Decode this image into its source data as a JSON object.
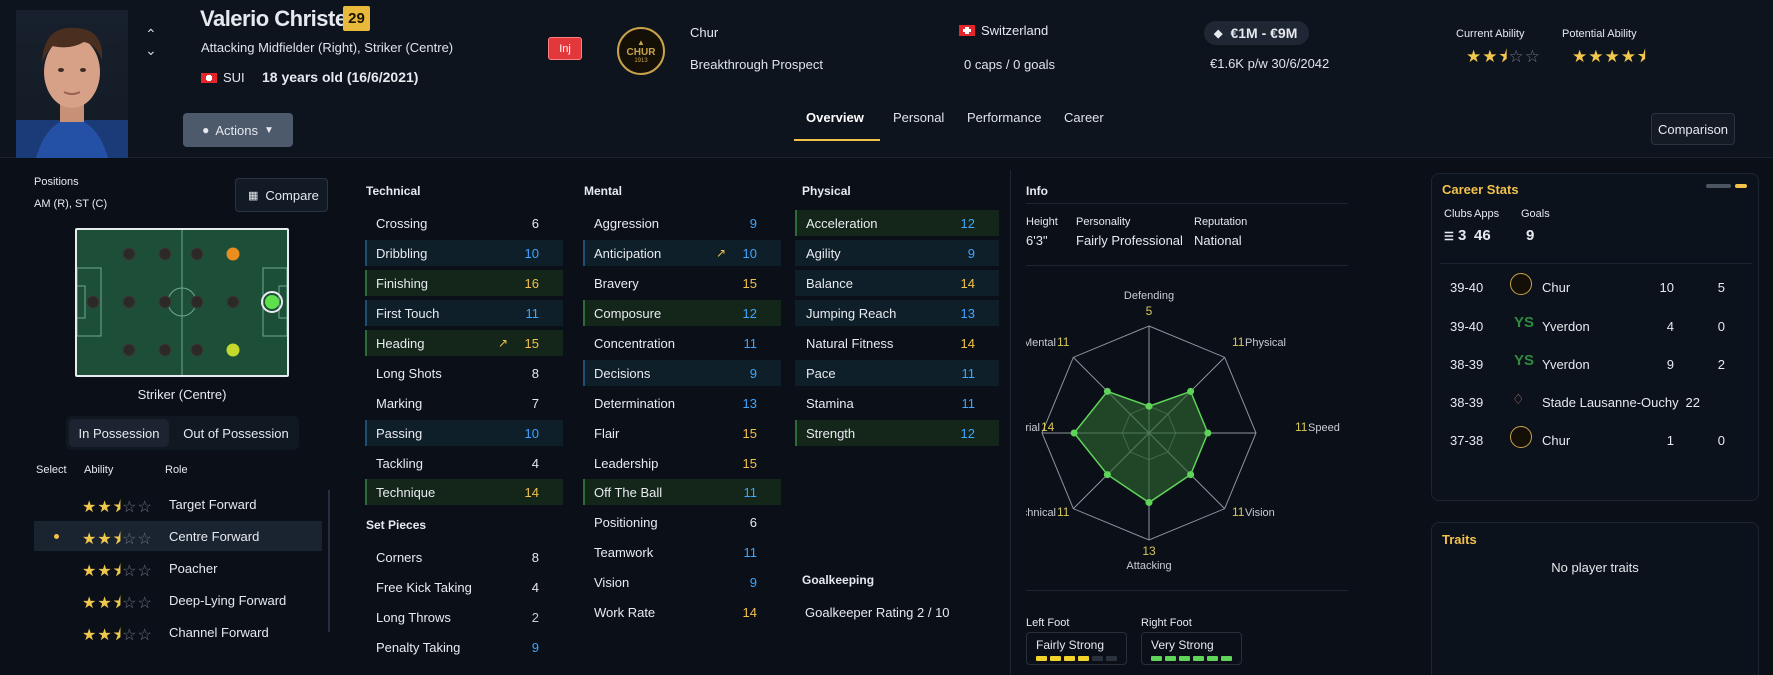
{
  "player": {
    "name": "Valerio Christen",
    "number": "29",
    "positions_text": "Attacking Midfielder (Right), Striker (Centre)",
    "nation_code": "SUI",
    "age_text": "18 years old (16/6/2021)",
    "inj_badge": "Inj",
    "club": "Chur",
    "status": "Breakthrough Prospect",
    "club_badge_text": "CHUR",
    "club_badge_year": "1913",
    "nationality": "Switzerland",
    "caps": "0 caps / 0 goals",
    "value": "€1M - €9M",
    "contract": "€1.6K p/w 30/6/2042",
    "current_ability_label": "Current Ability",
    "potential_ability_label": "Potential Ability",
    "current_ability_stars": 2.5,
    "potential_ability_stars": 4.5
  },
  "actions_label": "Actions",
  "comparison_label": "Comparison",
  "tabs": [
    {
      "label": "Overview",
      "active": true
    },
    {
      "label": "Personal"
    },
    {
      "label": "Performance"
    },
    {
      "label": "Career"
    }
  ],
  "positions_panel": {
    "label": "Positions",
    "value": "AM (R), ST (C)",
    "compare_label": "Compare",
    "pitch_caption": "Striker (Centre)",
    "toggle": [
      "In Possession",
      "Out of Possession"
    ],
    "columns": [
      "Select",
      "Ability",
      "Role"
    ],
    "roles": [
      {
        "name": "Target Forward",
        "stars": 2.5,
        "selected": false
      },
      {
        "name": "Centre Forward",
        "stars": 2.5,
        "selected": true
      },
      {
        "name": "Poacher",
        "stars": 2.5,
        "selected": false
      },
      {
        "name": "Deep-Lying Forward",
        "stars": 2.5,
        "selected": false
      },
      {
        "name": "Channel Forward",
        "stars": 2.5,
        "selected": false
      }
    ]
  },
  "technical": {
    "title": "Technical",
    "items": [
      {
        "name": "Crossing",
        "value": "6"
      },
      {
        "name": "Dribbling",
        "value": "10"
      },
      {
        "name": "Finishing",
        "value": "16"
      },
      {
        "name": "First Touch",
        "value": "11"
      },
      {
        "name": "Heading",
        "value": "15"
      },
      {
        "name": "Long Shots",
        "value": "8"
      },
      {
        "name": "Marking",
        "value": "7"
      },
      {
        "name": "Passing",
        "value": "10"
      },
      {
        "name": "Tackling",
        "value": "4"
      },
      {
        "name": "Technique",
        "value": "14"
      }
    ]
  },
  "set_pieces": {
    "title": "Set Pieces",
    "items": [
      {
        "name": "Corners",
        "value": "8"
      },
      {
        "name": "Free Kick Taking",
        "value": "4"
      },
      {
        "name": "Long Throws",
        "value": "2"
      },
      {
        "name": "Penalty Taking",
        "value": "9"
      }
    ]
  },
  "mental": {
    "title": "Mental",
    "items": [
      {
        "name": "Aggression",
        "value": "9"
      },
      {
        "name": "Anticipation",
        "value": "10"
      },
      {
        "name": "Bravery",
        "value": "15"
      },
      {
        "name": "Composure",
        "value": "12"
      },
      {
        "name": "Concentration",
        "value": "11"
      },
      {
        "name": "Decisions",
        "value": "9"
      },
      {
        "name": "Determination",
        "value": "13"
      },
      {
        "name": "Flair",
        "value": "15"
      },
      {
        "name": "Leadership",
        "value": "15"
      },
      {
        "name": "Off The Ball",
        "value": "11"
      },
      {
        "name": "Positioning",
        "value": "6"
      },
      {
        "name": "Teamwork",
        "value": "11"
      },
      {
        "name": "Vision",
        "value": "9"
      },
      {
        "name": "Work Rate",
        "value": "14"
      }
    ]
  },
  "physical": {
    "title": "Physical",
    "items": [
      {
        "name": "Acceleration",
        "value": "12"
      },
      {
        "name": "Agility",
        "value": "9"
      },
      {
        "name": "Balance",
        "value": "14"
      },
      {
        "name": "Jumping Reach",
        "value": "13"
      },
      {
        "name": "Natural Fitness",
        "value": "14"
      },
      {
        "name": "Pace",
        "value": "11"
      },
      {
        "name": "Stamina",
        "value": "11"
      },
      {
        "name": "Strength",
        "value": "12"
      }
    ]
  },
  "goalkeeping": {
    "title": "Goalkeeping",
    "rating": "Goalkeeper Rating 2 / 10"
  },
  "info": {
    "title": "Info",
    "height_label": "Height",
    "height": "6'3\"",
    "personality_label": "Personality",
    "personality": "Fairly Professional",
    "reputation_label": "Reputation",
    "reputation": "National",
    "radar": {
      "axes": [
        {
          "label": "Defending",
          "value": "5"
        },
        {
          "label": "Physical",
          "value": "11"
        },
        {
          "label": "Speed",
          "value": "11"
        },
        {
          "label": "Vision",
          "value": "11"
        },
        {
          "label": "Attacking",
          "value": "13"
        },
        {
          "label": "Technical",
          "value": "11"
        },
        {
          "label": "Aerial",
          "value": "14"
        },
        {
          "label": "Mental",
          "value": "11"
        }
      ],
      "max": 20
    },
    "left_foot_label": "Left Foot",
    "left_foot": "Fairly Strong",
    "left_foot_level": 4,
    "right_foot_label": "Right Foot",
    "right_foot": "Very Strong",
    "right_foot_level": 6
  },
  "career_stats": {
    "title": "Career Stats",
    "clubs_label": "Clubs",
    "clubs": "3",
    "apps_label": "Apps",
    "apps": "46",
    "goals_label": "Goals",
    "goals": "9",
    "rows": [
      {
        "season": "39-40",
        "club": "Chur",
        "apps": "10",
        "goals": "5"
      },
      {
        "season": "39-40",
        "club": "Yverdon",
        "apps": "4",
        "goals": "0"
      },
      {
        "season": "38-39",
        "club": "Yverdon",
        "apps": "9",
        "goals": "2"
      },
      {
        "season": "38-39",
        "club": "Stade Lausanne-Ouchy",
        "apps": "22",
        "goals": ""
      },
      {
        "season": "37-38",
        "club": "Chur",
        "apps": "1",
        "goals": "0"
      }
    ]
  },
  "traits": {
    "title": "Traits",
    "text": "No player traits"
  },
  "colors": {
    "accent": "#f2c14a",
    "blue_value": "#3fa5ff",
    "radar_fill": "#2e6b32",
    "radar_point": "#5fd35a"
  }
}
